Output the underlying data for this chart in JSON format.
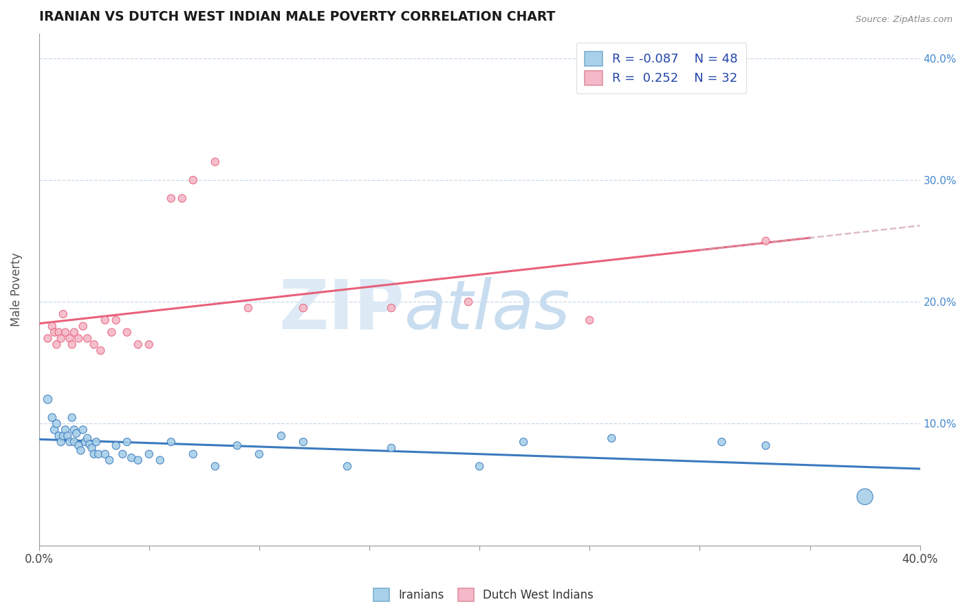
{
  "title": "IRANIAN VS DUTCH WEST INDIAN MALE POVERTY CORRELATION CHART",
  "source": "Source: ZipAtlas.com",
  "ylabel": "Male Poverty",
  "xlim": [
    0.0,
    0.4
  ],
  "ylim": [
    0.0,
    0.42
  ],
  "color_iranian": "#a8d0e8",
  "color_dutch": "#f4b8c8",
  "color_trend_iranian": "#3a7abf",
  "color_trend_dutch": "#e8607a",
  "color_trend_dashed": "#d0a0b0",
  "iranian_x": [
    0.004,
    0.006,
    0.007,
    0.008,
    0.009,
    0.01,
    0.011,
    0.012,
    0.013,
    0.014,
    0.015,
    0.016,
    0.016,
    0.017,
    0.018,
    0.019,
    0.02,
    0.021,
    0.022,
    0.023,
    0.024,
    0.025,
    0.026,
    0.027,
    0.03,
    0.032,
    0.035,
    0.038,
    0.04,
    0.042,
    0.045,
    0.05,
    0.055,
    0.06,
    0.07,
    0.08,
    0.09,
    0.1,
    0.11,
    0.12,
    0.14,
    0.16,
    0.2,
    0.22,
    0.26,
    0.31,
    0.33,
    0.375
  ],
  "iranian_y": [
    0.12,
    0.105,
    0.095,
    0.1,
    0.09,
    0.085,
    0.09,
    0.095,
    0.09,
    0.085,
    0.105,
    0.095,
    0.085,
    0.092,
    0.082,
    0.078,
    0.095,
    0.085,
    0.088,
    0.083,
    0.08,
    0.075,
    0.085,
    0.075,
    0.075,
    0.07,
    0.082,
    0.075,
    0.085,
    0.072,
    0.07,
    0.075,
    0.07,
    0.085,
    0.075,
    0.065,
    0.082,
    0.075,
    0.09,
    0.085,
    0.065,
    0.08,
    0.065,
    0.085,
    0.088,
    0.085,
    0.082,
    0.04
  ],
  "iranian_sizes": [
    80,
    70,
    65,
    70,
    65,
    65,
    65,
    65,
    65,
    65,
    65,
    65,
    65,
    65,
    65,
    65,
    65,
    65,
    65,
    65,
    65,
    65,
    65,
    65,
    65,
    65,
    65,
    65,
    65,
    65,
    65,
    65,
    65,
    65,
    65,
    65,
    65,
    65,
    65,
    65,
    65,
    65,
    65,
    65,
    65,
    65,
    65,
    280
  ],
  "dutch_x": [
    0.004,
    0.006,
    0.007,
    0.008,
    0.009,
    0.01,
    0.011,
    0.012,
    0.014,
    0.015,
    0.016,
    0.018,
    0.02,
    0.022,
    0.025,
    0.028,
    0.03,
    0.033,
    0.035,
    0.04,
    0.045,
    0.05,
    0.06,
    0.065,
    0.07,
    0.08,
    0.095,
    0.12,
    0.16,
    0.195,
    0.25,
    0.33
  ],
  "dutch_y": [
    0.17,
    0.18,
    0.175,
    0.165,
    0.175,
    0.17,
    0.19,
    0.175,
    0.17,
    0.165,
    0.175,
    0.17,
    0.18,
    0.17,
    0.165,
    0.16,
    0.185,
    0.175,
    0.185,
    0.175,
    0.165,
    0.165,
    0.285,
    0.285,
    0.3,
    0.315,
    0.195,
    0.195,
    0.195,
    0.2,
    0.185,
    0.25
  ],
  "dutch_sizes": [
    65,
    65,
    65,
    65,
    65,
    65,
    65,
    65,
    65,
    65,
    65,
    65,
    65,
    65,
    65,
    65,
    65,
    65,
    65,
    65,
    65,
    65,
    65,
    65,
    65,
    65,
    65,
    65,
    65,
    65,
    65,
    65
  ],
  "watermark_zip_color": "#ddeaf5",
  "watermark_atlas_color": "#c8ddef"
}
